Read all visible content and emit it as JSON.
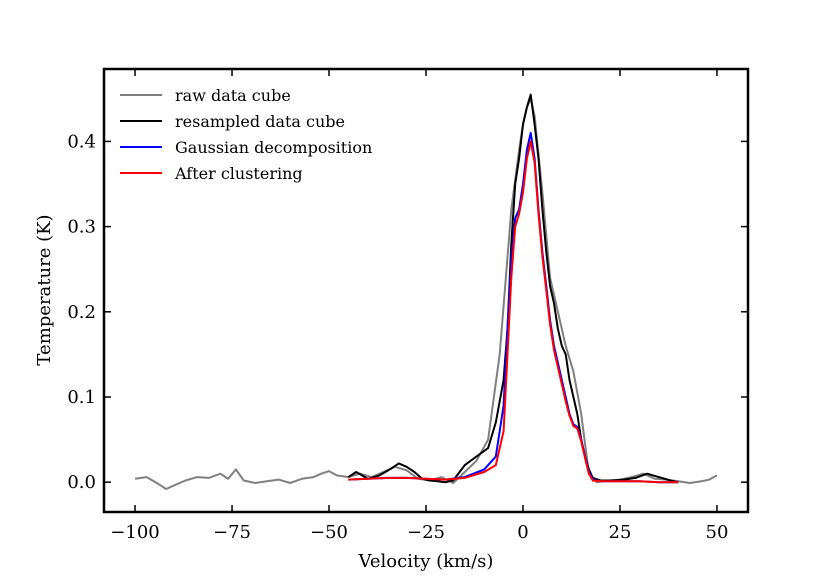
{
  "chart_data": {
    "type": "line",
    "title": "",
    "xlabel": "Velocity (km/s)",
    "ylabel": "Temperature (K)",
    "xlim": [
      -108,
      58
    ],
    "ylim": [
      -0.035,
      0.485
    ],
    "xticks": [
      -100,
      -75,
      -50,
      -25,
      0,
      25,
      50
    ],
    "xtick_labels": [
      "−100",
      "−75",
      "−50",
      "−25",
      "0",
      "25",
      "50"
    ],
    "yticks": [
      0.0,
      0.1,
      0.2,
      0.3,
      0.4
    ],
    "ytick_labels": [
      "0.0",
      "0.1",
      "0.2",
      "0.3",
      "0.4"
    ],
    "grid": false,
    "legend_position": "top-left",
    "series": [
      {
        "name": "raw data cube",
        "color": "#808080",
        "x": [
          -100,
          -97,
          -94,
          -92,
          -90,
          -87,
          -84,
          -81,
          -78,
          -76,
          -74,
          -72,
          -69,
          -66,
          -63,
          -60,
          -57,
          -54,
          -52,
          -50,
          -48,
          -45,
          -42,
          -39,
          -36,
          -33,
          -30,
          -27,
          -24,
          -21,
          -18,
          -15,
          -12,
          -9,
          -6,
          -3,
          -1,
          0,
          1,
          2,
          3,
          5,
          7,
          9,
          11,
          13,
          15,
          17,
          19,
          22,
          25,
          28,
          31,
          34,
          37,
          40,
          43,
          46,
          48,
          50
        ],
        "y": [
          0.004,
          0.006,
          -0.002,
          -0.008,
          -0.004,
          0.002,
          0.006,
          0.005,
          0.01,
          0.004,
          0.015,
          0.002,
          -0.001,
          0.001,
          0.003,
          -0.001,
          0.004,
          0.006,
          0.01,
          0.013,
          0.008,
          0.006,
          0.01,
          0.006,
          0.012,
          0.018,
          0.014,
          0.004,
          0.002,
          0.006,
          -0.001,
          0.012,
          0.025,
          0.05,
          0.15,
          0.32,
          0.39,
          0.42,
          0.44,
          0.45,
          0.43,
          0.34,
          0.24,
          0.2,
          0.16,
          0.13,
          0.08,
          0.01,
          0.0,
          0.002,
          0.003,
          0.006,
          0.01,
          0.004,
          0.003,
          0.001,
          -0.001,
          0.001,
          0.003,
          0.008
        ]
      },
      {
        "name": "resampled data cube",
        "color": "#000000",
        "x": [
          -45,
          -43,
          -40,
          -37,
          -34,
          -32,
          -30,
          -28,
          -26,
          -24,
          -22,
          -20,
          -18,
          -15,
          -12,
          -9,
          -7,
          -5,
          -4,
          -3,
          -2,
          -1,
          0,
          1,
          2,
          3,
          4,
          5,
          6,
          7,
          8,
          9,
          10,
          11,
          12,
          13,
          14,
          15,
          16,
          17,
          18,
          20,
          23,
          26,
          29,
          32,
          35,
          38,
          40
        ],
        "y": [
          0.006,
          0.012,
          0.004,
          0.008,
          0.016,
          0.022,
          0.018,
          0.012,
          0.004,
          0.002,
          0.001,
          0.0,
          0.002,
          0.02,
          0.03,
          0.04,
          0.07,
          0.12,
          0.18,
          0.28,
          0.35,
          0.38,
          0.42,
          0.44,
          0.455,
          0.42,
          0.38,
          0.32,
          0.27,
          0.23,
          0.21,
          0.18,
          0.16,
          0.15,
          0.12,
          0.1,
          0.08,
          0.05,
          0.03,
          0.015,
          0.005,
          0.002,
          0.002,
          0.003,
          0.005,
          0.01,
          0.006,
          0.002,
          0.0
        ]
      },
      {
        "name": "Gaussian decomposition",
        "color": "#0000ff",
        "x": [
          -45,
          -40,
          -35,
          -30,
          -25,
          -20,
          -15,
          -10,
          -7,
          -5,
          -4,
          -3,
          -2,
          -1,
          0,
          1,
          2,
          3,
          4,
          5,
          6,
          7,
          8,
          9,
          10,
          11,
          12,
          13,
          14,
          15,
          16,
          17,
          18,
          20,
          25,
          30,
          35,
          40
        ],
        "y": [
          0.003,
          0.004,
          0.005,
          0.005,
          0.004,
          0.003,
          0.006,
          0.015,
          0.03,
          0.09,
          0.18,
          0.26,
          0.31,
          0.32,
          0.35,
          0.39,
          0.41,
          0.38,
          0.32,
          0.27,
          0.23,
          0.19,
          0.16,
          0.14,
          0.12,
          0.1,
          0.08,
          0.068,
          0.065,
          0.05,
          0.03,
          0.012,
          0.003,
          0.001,
          0.001,
          0.001,
          0.0,
          0.0
        ]
      },
      {
        "name": "After clustering",
        "color": "#ff0000",
        "x": [
          -45,
          -40,
          -35,
          -30,
          -25,
          -20,
          -15,
          -10,
          -7,
          -5,
          -4,
          -3,
          -2,
          -1,
          0,
          1,
          2,
          3,
          4,
          5,
          6,
          7,
          8,
          9,
          10,
          11,
          12,
          13,
          14,
          15,
          16,
          17,
          18,
          20,
          25,
          30,
          35,
          40
        ],
        "y": [
          0.003,
          0.004,
          0.005,
          0.005,
          0.004,
          0.003,
          0.005,
          0.012,
          0.02,
          0.06,
          0.15,
          0.24,
          0.3,
          0.315,
          0.34,
          0.38,
          0.4,
          0.375,
          0.315,
          0.265,
          0.225,
          0.185,
          0.155,
          0.135,
          0.115,
          0.095,
          0.078,
          0.066,
          0.063,
          0.048,
          0.028,
          0.01,
          0.002,
          0.001,
          0.001,
          0.001,
          0.0,
          0.0
        ]
      }
    ]
  }
}
